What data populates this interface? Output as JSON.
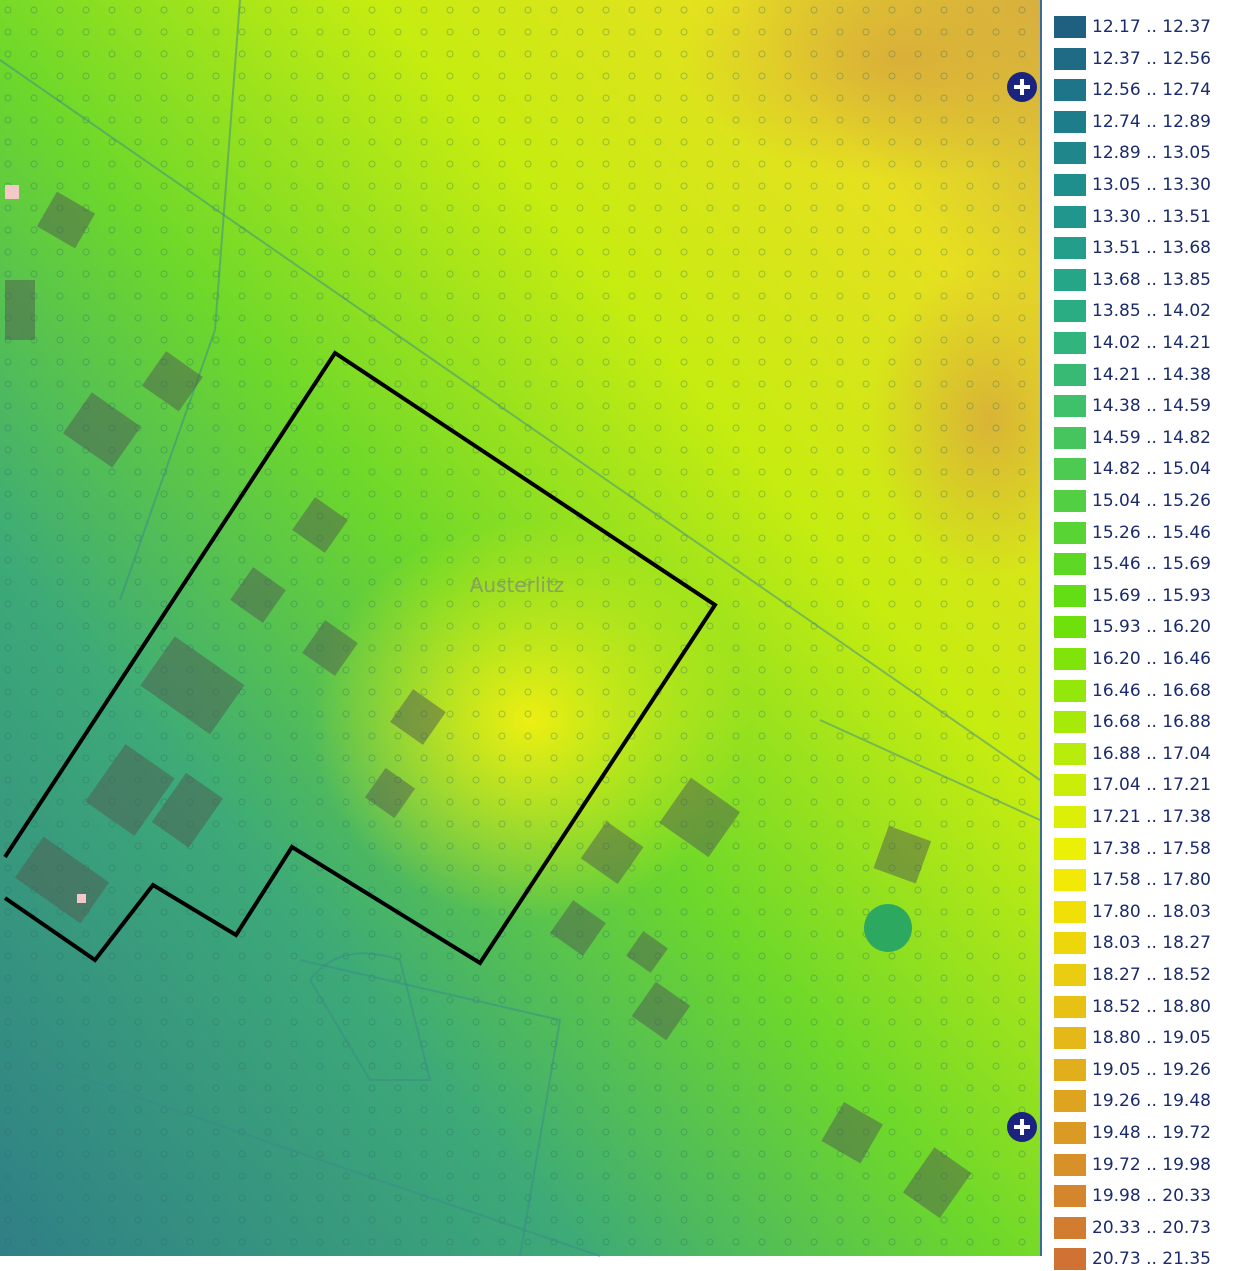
{
  "map": {
    "place_label": "Austerlitz"
  },
  "legend": {
    "items": [
      {
        "label": "12.17 .. 12.37",
        "color": "#1f5f80"
      },
      {
        "label": "12.37 .. 12.56",
        "color": "#1f6a85"
      },
      {
        "label": "12.56 .. 12.74",
        "color": "#1e7488"
      },
      {
        "label": "12.74 .. 12.89",
        "color": "#1e7d8a"
      },
      {
        "label": "12.89 .. 13.05",
        "color": "#1f868c"
      },
      {
        "label": "13.05 .. 13.30",
        "color": "#1f8f8d"
      },
      {
        "label": "13.30 .. 13.51",
        "color": "#20968d"
      },
      {
        "label": "13.51 .. 13.68",
        "color": "#229e8b"
      },
      {
        "label": "13.68 .. 13.85",
        "color": "#26a688"
      },
      {
        "label": "13.85 .. 14.02",
        "color": "#2bad83"
      },
      {
        "label": "14.02 .. 14.21",
        "color": "#31b47d"
      },
      {
        "label": "14.21 .. 14.38",
        "color": "#38ba75"
      },
      {
        "label": "14.38 .. 14.59",
        "color": "#3fc06b"
      },
      {
        "label": "14.59 .. 14.82",
        "color": "#46c55f"
      },
      {
        "label": "14.82 .. 15.04",
        "color": "#4dca52"
      },
      {
        "label": "15.04 .. 15.26",
        "color": "#53cf43"
      },
      {
        "label": "15.26 .. 15.46",
        "color": "#58d434"
      },
      {
        "label": "15.46 .. 15.69",
        "color": "#5dd925"
      },
      {
        "label": "15.69 .. 15.93",
        "color": "#63dd14"
      },
      {
        "label": "15.93 .. 16.20",
        "color": "#6ee10c"
      },
      {
        "label": "16.20 .. 16.46",
        "color": "#80e40a"
      },
      {
        "label": "16.46 .. 16.68",
        "color": "#93e70a"
      },
      {
        "label": "16.68 .. 16.88",
        "color": "#a6ea0a"
      },
      {
        "label": "16.88 .. 17.04",
        "color": "#b8ec0a"
      },
      {
        "label": "17.04 .. 17.21",
        "color": "#caee0a"
      },
      {
        "label": "17.21 .. 17.38",
        "color": "#dcef08"
      },
      {
        "label": "17.38 .. 17.58",
        "color": "#ecf006"
      },
      {
        "label": "17.58 .. 17.80",
        "color": "#f2ea06"
      },
      {
        "label": "17.80 .. 18.03",
        "color": "#f0e008"
      },
      {
        "label": "18.03 .. 18.27",
        "color": "#edd60c"
      },
      {
        "label": "18.27 .. 18.52",
        "color": "#eacc10"
      },
      {
        "label": "18.52 .. 18.80",
        "color": "#e7c214"
      },
      {
        "label": "18.80 .. 19.05",
        "color": "#e4b818"
      },
      {
        "label": "19.05 .. 19.26",
        "color": "#e1ae1c"
      },
      {
        "label": "19.26 .. 19.48",
        "color": "#dea420"
      },
      {
        "label": "19.48 .. 19.72",
        "color": "#db9a24"
      },
      {
        "label": "19.72 .. 19.98",
        "color": "#d89028"
      },
      {
        "label": "19.98 .. 20.33",
        "color": "#d5862c"
      },
      {
        "label": "20.33 .. 20.73",
        "color": "#d27c30"
      },
      {
        "label": "20.73 .. 21.35",
        "color": "#cf7234"
      }
    ]
  }
}
